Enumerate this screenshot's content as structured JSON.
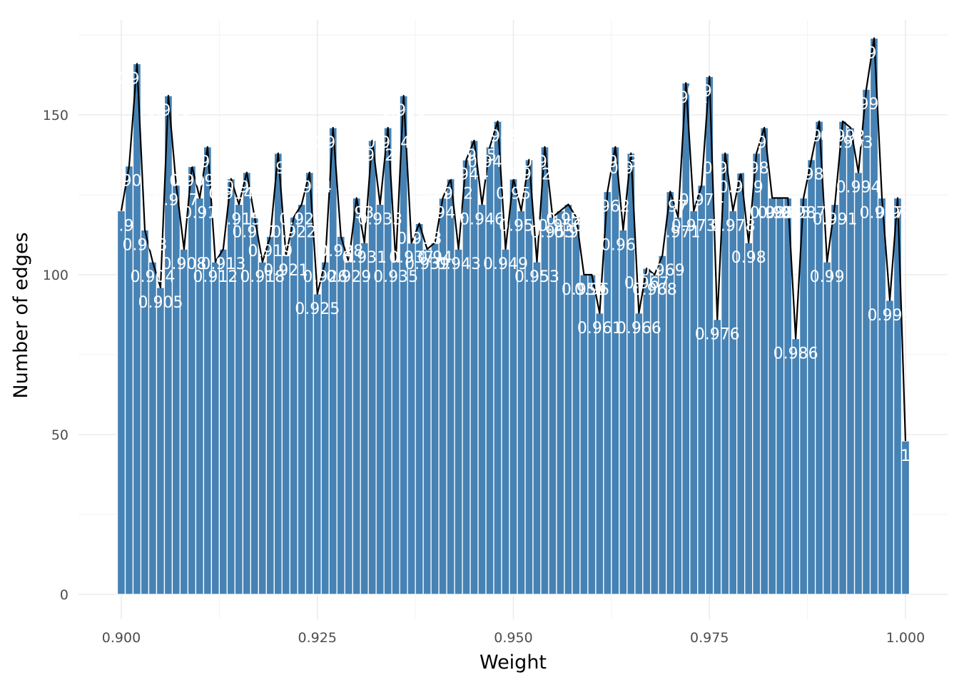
{
  "chart_data": {
    "type": "bar",
    "xlabel": "Weight",
    "ylabel": "Number of edges",
    "xlim": [
      0.9,
      1.0
    ],
    "ylim": [
      0,
      175
    ],
    "x_ticks": [
      {
        "value": 0.9,
        "label": "0.900"
      },
      {
        "value": 0.925,
        "label": "0.925"
      },
      {
        "value": 0.95,
        "label": "0.950"
      },
      {
        "value": 0.975,
        "label": "0.975"
      },
      {
        "value": 1.0,
        "label": "1.000"
      }
    ],
    "y_ticks": [
      {
        "value": 0,
        "label": "0"
      },
      {
        "value": 50,
        "label": "50"
      },
      {
        "value": 100,
        "label": "100"
      },
      {
        "value": 150,
        "label": "150"
      }
    ],
    "grid": true,
    "legend": "none",
    "overlay": "line",
    "colors": {
      "bar": "#4682b4",
      "line": "#000000",
      "label": "#ffffff",
      "grid": "#ebebeb"
    },
    "bin_width": 0.001,
    "x": [
      0.9,
      0.901,
      0.902,
      0.903,
      0.904,
      0.905,
      0.906,
      0.907,
      0.908,
      0.909,
      0.91,
      0.911,
      0.912,
      0.913,
      0.914,
      0.915,
      0.916,
      0.917,
      0.918,
      0.919,
      0.92,
      0.921,
      0.922,
      0.923,
      0.924,
      0.925,
      0.926,
      0.927,
      0.928,
      0.929,
      0.93,
      0.931,
      0.932,
      0.933,
      0.934,
      0.935,
      0.936,
      0.937,
      0.938,
      0.939,
      0.94,
      0.941,
      0.942,
      0.943,
      0.944,
      0.945,
      0.946,
      0.947,
      0.948,
      0.949,
      0.95,
      0.951,
      0.952,
      0.953,
      0.954,
      0.955,
      0.956,
      0.957,
      0.958,
      0.959,
      0.96,
      0.961,
      0.962,
      0.963,
      0.964,
      0.965,
      0.966,
      0.967,
      0.968,
      0.969,
      0.97,
      0.971,
      0.972,
      0.973,
      0.974,
      0.975,
      0.976,
      0.977,
      0.978,
      0.979,
      0.98,
      0.981,
      0.982,
      0.983,
      0.984,
      0.985,
      0.986,
      0.987,
      0.988,
      0.989,
      0.99,
      0.991,
      0.992,
      0.993,
      0.994,
      0.995,
      0.996,
      0.997,
      0.998,
      0.999,
      1.0
    ],
    "values": [
      120,
      134,
      166,
      114,
      104,
      96,
      156,
      128,
      108,
      134,
      124,
      140,
      104,
      108,
      130,
      122,
      132,
      118,
      104,
      112,
      138,
      106,
      118,
      122,
      132,
      94,
      104,
      146,
      112,
      104,
      124,
      110,
      142,
      122,
      146,
      104,
      156,
      110,
      116,
      108,
      110,
      124,
      130,
      108,
      136,
      142,
      122,
      140,
      148,
      108,
      130,
      120,
      136,
      104,
      140,
      118,
      120,
      122,
      118,
      100,
      100,
      88,
      126,
      140,
      114,
      138,
      88,
      102,
      100,
      106,
      126,
      118,
      160,
      120,
      128,
      162,
      86,
      138,
      120,
      132,
      110,
      138,
      146,
      124,
      124,
      124,
      80,
      124,
      136,
      148,
      104,
      122,
      148,
      146,
      132,
      158,
      174,
      124,
      92,
      124,
      48
    ],
    "labels": [
      "0.9",
      "0.901",
      "0.902",
      "0.903",
      "0.904",
      "0.905",
      "0.906",
      "0.907",
      "0.908",
      "0.909",
      "0.91",
      "0.911",
      "0.912",
      "0.913",
      "0.914",
      "0.915",
      "0.916",
      "0.917",
      "0.918",
      "0.919",
      "0.92",
      "0.921",
      "0.922",
      "0.923",
      "0.924",
      "0.925",
      "0.926",
      "0.927",
      "0.928",
      "0.929",
      "0.93",
      "0.931",
      "0.932",
      "0.933",
      "0.934",
      "0.935",
      "0.936",
      "0.937",
      "0.938",
      "0.939",
      "0.94",
      "0.941",
      "0.942",
      "0.943",
      "0.944",
      "0.945",
      "0.946",
      "0.947",
      "0.948",
      "0.949",
      "0.95",
      "0.951",
      "0.952",
      "0.953",
      "0.954",
      "0.955",
      "0.956",
      "0.957",
      "0.958",
      "0.959",
      "0.96",
      "0.961",
      "0.962",
      "0.963",
      "0.964",
      "0.965",
      "0.966",
      "0.967",
      "0.968",
      "0.969",
      "0.97",
      "0.971",
      "0.972",
      "0.973",
      "0.974",
      "0.975",
      "0.976",
      "0.977",
      "0.978",
      "0.979",
      "0.98",
      "0.981",
      "0.982",
      "0.983",
      "0.984",
      "0.985",
      "0.986",
      "0.987",
      "0.988",
      "0.989",
      "0.99",
      "0.991",
      "0.992",
      "0.993",
      "0.994",
      "0.995",
      "0.996",
      "0.997",
      "0.998",
      "0.999",
      "1"
    ]
  }
}
